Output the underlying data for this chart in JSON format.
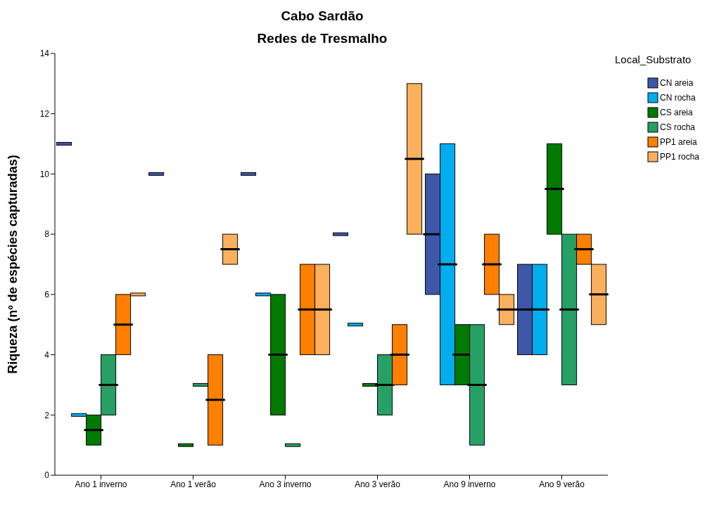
{
  "chart_data": {
    "type": "box",
    "title": "Cabo Sardão",
    "subtitle": "Redes de Tresmalho",
    "ylabel": "Riqueza (nº de espécies capturadas)",
    "legend_title": "Local_Substrato",
    "legend": "right",
    "grid": false,
    "categories": [
      "Ano 1 inverno",
      "Ano 1 verão",
      "Ano 3 inverno",
      "Ano 3 verão",
      "Ano 9 inverno",
      "Ano 9 verão"
    ],
    "ylim": [
      0,
      14
    ],
    "yticks": [
      0,
      2,
      4,
      6,
      8,
      10,
      12,
      14
    ],
    "series": [
      {
        "name": "CN areia",
        "color": "#3f57a8",
        "boxes": [
          {
            "low": 11,
            "q1": 11,
            "median": 11,
            "q3": 11,
            "high": 11
          },
          {
            "low": 10,
            "q1": 10,
            "median": 10,
            "q3": 10,
            "high": 10
          },
          {
            "low": 10,
            "q1": 10,
            "median": 10,
            "q3": 10,
            "high": 10
          },
          {
            "low": 8,
            "q1": 8,
            "median": 8,
            "q3": 8,
            "high": 8
          },
          {
            "low": 6,
            "q1": 6,
            "median": 8,
            "q3": 10,
            "high": 10
          },
          {
            "low": 4,
            "q1": 4,
            "median": 5.5,
            "q3": 7,
            "high": 7
          }
        ]
      },
      {
        "name": "CN rocha",
        "color": "#00adef",
        "boxes": [
          {
            "low": 2,
            "q1": 2,
            "median": 2,
            "q3": 2,
            "high": 2
          },
          null,
          {
            "low": 6,
            "q1": 6,
            "median": 6,
            "q3": 6,
            "high": 6
          },
          {
            "low": 5,
            "q1": 5,
            "median": 5,
            "q3": 5,
            "high": 5
          },
          {
            "low": 3,
            "q1": 3,
            "median": 7,
            "q3": 11,
            "high": 11
          },
          {
            "low": 4,
            "q1": 4,
            "median": 5.5,
            "q3": 7,
            "high": 7
          }
        ]
      },
      {
        "name": "CS areia",
        "color": "#007a00",
        "boxes": [
          {
            "low": 1,
            "q1": 1,
            "median": 1.5,
            "q3": 2,
            "high": 2
          },
          {
            "low": 1,
            "q1": 1,
            "median": 1,
            "q3": 1,
            "high": 1
          },
          {
            "low": 2,
            "q1": 2,
            "median": 4,
            "q3": 6,
            "high": 6
          },
          {
            "low": 3,
            "q1": 3,
            "median": 3,
            "q3": 3,
            "high": 3
          },
          {
            "low": 3,
            "q1": 3,
            "median": 4,
            "q3": 5,
            "high": 5
          },
          {
            "low": 8,
            "q1": 8,
            "median": 9.5,
            "q3": 11,
            "high": 11
          }
        ]
      },
      {
        "name": "CS rocha",
        "color": "#27a066",
        "boxes": [
          {
            "low": 2,
            "q1": 2,
            "median": 3,
            "q3": 4,
            "high": 4
          },
          {
            "low": 3,
            "q1": 3,
            "median": 3,
            "q3": 3,
            "high": 3
          },
          {
            "low": 1,
            "q1": 1,
            "median": 1,
            "q3": 1,
            "high": 1
          },
          {
            "low": 2,
            "q1": 2,
            "median": 3,
            "q3": 4,
            "high": 4
          },
          {
            "low": 1,
            "q1": 1,
            "median": 3,
            "q3": 5,
            "high": 5
          },
          {
            "low": 3,
            "q1": 3,
            "median": 5.5,
            "q3": 8,
            "high": 8
          }
        ]
      },
      {
        "name": "PP1 areia",
        "color": "#ff7f00",
        "boxes": [
          {
            "low": 4,
            "q1": 4,
            "median": 5,
            "q3": 6,
            "high": 6
          },
          {
            "low": 1,
            "q1": 1,
            "median": 2.5,
            "q3": 4,
            "high": 4
          },
          {
            "low": 4,
            "q1": 4,
            "median": 5.5,
            "q3": 7,
            "high": 7
          },
          {
            "low": 3,
            "q1": 3,
            "median": 4,
            "q3": 5,
            "high": 5
          },
          {
            "low": 6,
            "q1": 6,
            "median": 7,
            "q3": 8,
            "high": 8
          },
          {
            "low": 7,
            "q1": 7,
            "median": 7.5,
            "q3": 8,
            "high": 8
          }
        ]
      },
      {
        "name": "PP1 rocha",
        "color": "#fbb05d",
        "boxes": [
          {
            "low": 6,
            "q1": 6,
            "median": 6,
            "q3": 6,
            "high": 6
          },
          {
            "low": 7,
            "q1": 7,
            "median": 7.5,
            "q3": 8,
            "high": 8
          },
          {
            "low": 4,
            "q1": 4,
            "median": 5.5,
            "q3": 7,
            "high": 7
          },
          {
            "low": 8,
            "q1": 8,
            "median": 10.5,
            "q3": 13,
            "high": 13
          },
          {
            "low": 5,
            "q1": 5,
            "median": 5.5,
            "q3": 6,
            "high": 6
          },
          {
            "low": 5,
            "q1": 5,
            "median": 6,
            "q3": 7,
            "high": 7
          }
        ]
      }
    ]
  }
}
